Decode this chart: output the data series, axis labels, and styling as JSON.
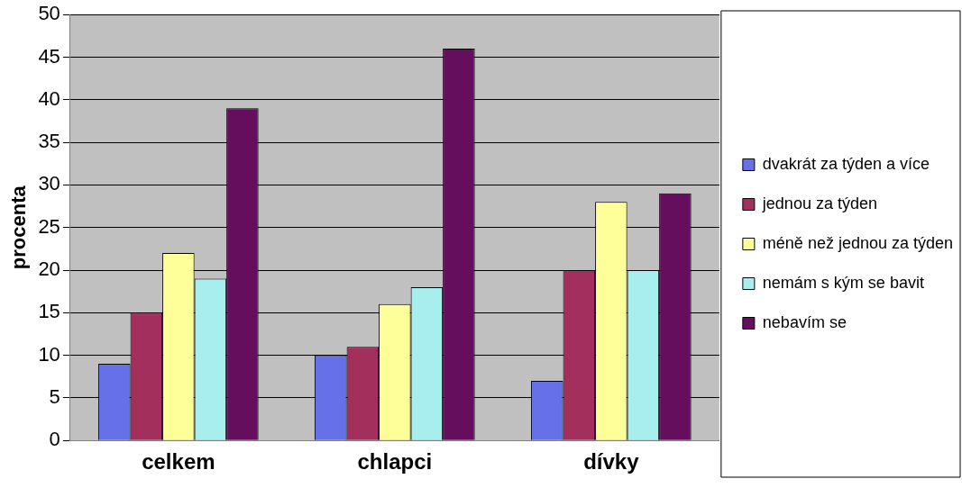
{
  "chart_data": {
    "type": "bar",
    "ylabel": "procenta",
    "categories": [
      "celkem",
      "chlapci",
      "dívky"
    ],
    "series": [
      {
        "name": "dvakrát za týden a více",
        "color": "#6670e8",
        "values": [
          9,
          10,
          7
        ]
      },
      {
        "name": "jednou za týden",
        "color": "#a3305c",
        "values": [
          15,
          11,
          20
        ]
      },
      {
        "name": "méně než jednou za týden",
        "color": "#ffff99",
        "values": [
          22,
          16,
          28
        ]
      },
      {
        "name": "nemám s kým se bavit",
        "color": "#a8eeee",
        "values": [
          19,
          18,
          20
        ]
      },
      {
        "name": "nebavím se",
        "color": "#660e5e",
        "values": [
          39,
          46,
          29
        ]
      }
    ],
    "ylim": [
      0,
      50
    ],
    "yticks": [
      0,
      5,
      10,
      15,
      20,
      25,
      30,
      35,
      40,
      45,
      50
    ],
    "grid": "y",
    "legend": "right"
  }
}
